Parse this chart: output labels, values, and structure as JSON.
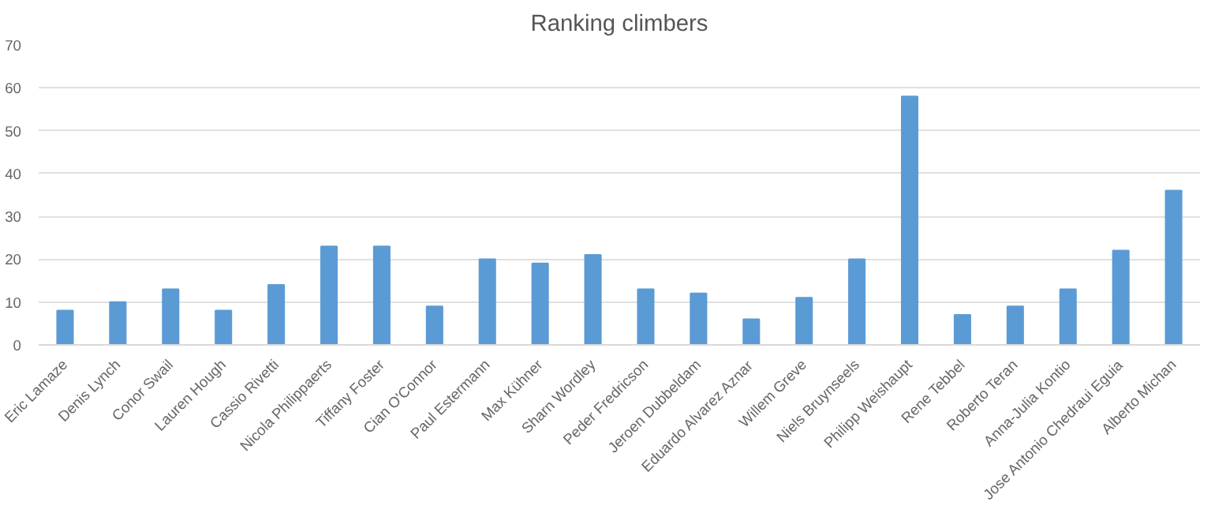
{
  "chart_data": {
    "type": "bar",
    "title": "Ranking climbers",
    "categories": [
      "Eric Lamaze",
      "Denis Lynch",
      "Conor Swail",
      "Lauren Hough",
      "Cassio Rivetti",
      "Nicola Philippaerts",
      "Tiffany Foster",
      "Cian O'Connor",
      "Paul Estermann",
      "Max Kühner",
      "Sharn Wordley",
      "Peder Fredricson",
      "Jeroen Dubbeldam",
      "Eduardo Alvarez Aznar",
      "Willem Greve",
      "Niels Bruynseels",
      "Philipp Weishaupt",
      "Rene Tebbel",
      "Roberto Teran",
      "Anna-Julia Kontio",
      "Jose Antonio Chedraui Eguia",
      "Alberto Michan"
    ],
    "values": [
      8,
      10,
      13,
      8,
      14,
      23,
      23,
      9,
      20,
      19,
      21,
      13,
      12,
      6,
      11,
      20,
      58,
      7,
      9,
      13,
      22,
      36
    ],
    "color": "#5b9bd5",
    "ylim": [
      0,
      70
    ],
    "yticks": [
      0,
      10,
      20,
      30,
      40,
      50,
      60,
      70
    ],
    "grid": "y"
  }
}
